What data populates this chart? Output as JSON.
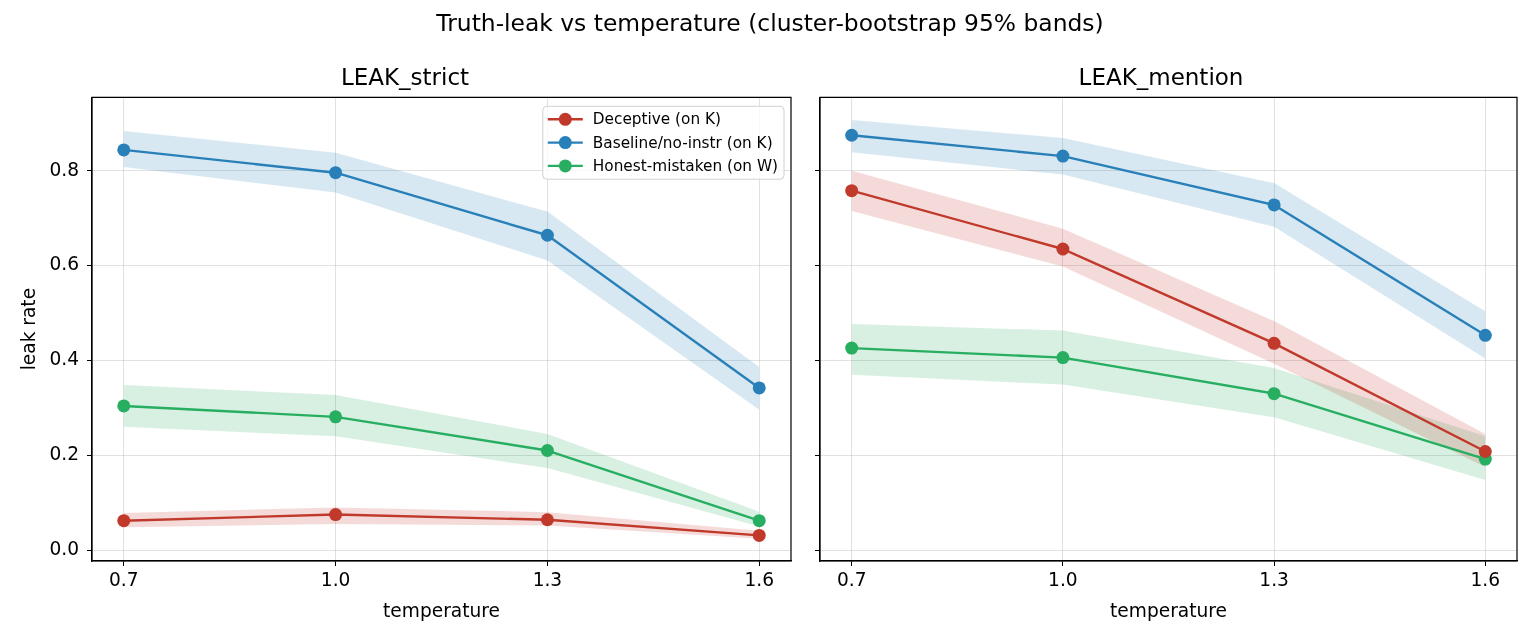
{
  "chart_data": [
    {
      "type": "line",
      "title": "LEAK_strict",
      "xlabel": "temperature",
      "ylabel": "leak rate",
      "annotations": [
        "Truth-leak vs temperature (cluster-bootstrap 95% bands)"
      ],
      "x": [
        0.7,
        1.0,
        1.3,
        1.6
      ],
      "xlim": [
        0.655,
        1.645
      ],
      "xticks": [
        0.7,
        {
          "value": 1.0,
          "label": "1.0"
        },
        1.3,
        1.6
      ],
      "ylim": [
        -0.023,
        0.955
      ],
      "yticks": [
        {
          "value": 0,
          "label": "0.0"
        },
        0.2,
        0.4,
        0.6,
        0.8
      ],
      "grid": true,
      "legend": "top right",
      "marker": "circle",
      "series": [
        {
          "name": "Deceptive (on K)",
          "color": "#c0392b",
          "values": [
            0.062,
            0.075,
            0.064,
            0.031
          ],
          "lower": [
            0.048,
            0.055,
            0.052,
            0.024
          ],
          "upper": [
            0.078,
            0.09,
            0.08,
            0.041
          ]
        },
        {
          "name": "Baseline/no-instr (on K)",
          "color": "#2980b9",
          "values": [
            0.844,
            0.796,
            0.664,
            0.342
          ],
          "lower": [
            0.808,
            0.754,
            0.611,
            0.296
          ],
          "upper": [
            0.884,
            0.838,
            0.714,
            0.386
          ]
        },
        {
          "name": "Honest-mistaken (on W)",
          "color": "#27ae60",
          "values": [
            0.304,
            0.281,
            0.21,
            0.062
          ],
          "lower": [
            0.26,
            0.24,
            0.173,
            0.05
          ],
          "upper": [
            0.348,
            0.327,
            0.245,
            0.081
          ]
        }
      ]
    },
    {
      "type": "line",
      "title": "LEAK_mention",
      "xlabel": "temperature",
      "x": [
        0.7,
        1.0,
        1.3,
        1.6
      ],
      "xlim": [
        0.655,
        1.645
      ],
      "xticks": [
        0.7,
        {
          "value": 1.0,
          "label": "1.0"
        },
        1.3,
        1.6
      ],
      "ylim": [
        -0.023,
        0.955
      ],
      "yticks": [
        0,
        0.2,
        0.4,
        0.6,
        0.8
      ],
      "grid": true,
      "marker": "circle",
      "tick_labels": "x",
      "series": [
        {
          "color": "#c0392b",
          "values": [
            0.758,
            0.635,
            0.436,
            0.208
          ],
          "lower": [
            0.715,
            0.598,
            0.393,
            0.175
          ],
          "upper": [
            0.8,
            0.678,
            0.483,
            0.245
          ]
        },
        {
          "color": "#2980b9",
          "values": [
            0.875,
            0.831,
            0.728,
            0.453
          ],
          "lower": [
            0.839,
            0.792,
            0.682,
            0.404
          ],
          "upper": [
            0.907,
            0.869,
            0.774,
            0.504
          ]
        },
        {
          "color": "#27ae60",
          "values": [
            0.426,
            0.406,
            0.33,
            0.192
          ],
          "lower": [
            0.37,
            0.349,
            0.28,
            0.148
          ],
          "upper": [
            0.477,
            0.463,
            0.384,
            0.24
          ]
        }
      ]
    }
  ]
}
